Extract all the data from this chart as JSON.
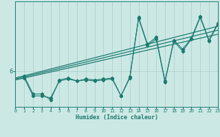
{
  "title": "",
  "xlabel": "Humidex (Indice chaleur)",
  "xlim": [
    0,
    23
  ],
  "ylim": [
    4.2,
    9.5
  ],
  "ytick_val": 6,
  "ytick_label": "6",
  "bg_color": "#cce8e5",
  "line_color": "#1a7a6e",
  "grid_color": "#a8ccc8",
  "series1_x": [
    1,
    2,
    3,
    4,
    5,
    6,
    7,
    8,
    9,
    10,
    11,
    12,
    13,
    14,
    15,
    16,
    17,
    18,
    19,
    20,
    21,
    22,
    23
  ],
  "series1_y": [
    5.65,
    4.75,
    4.75,
    4.65,
    5.5,
    5.6,
    5.5,
    5.55,
    5.5,
    5.55,
    5.6,
    4.75,
    5.65,
    8.65,
    7.3,
    7.6,
    5.45,
    7.5,
    7.0,
    7.6,
    8.7,
    7.5,
    8.35
  ],
  "series2_x": [
    1,
    2,
    3,
    4,
    5,
    6,
    7,
    8,
    9,
    10,
    11,
    12,
    13,
    14,
    15,
    16,
    17,
    18,
    19,
    20,
    21,
    22,
    23
  ],
  "series2_y": [
    5.75,
    4.85,
    4.85,
    4.55,
    5.55,
    5.65,
    5.5,
    5.6,
    5.55,
    5.6,
    5.65,
    4.75,
    5.7,
    8.7,
    7.35,
    7.7,
    5.5,
    7.55,
    7.1,
    7.65,
    8.75,
    7.55,
    8.4
  ],
  "trend1_x": [
    0,
    23
  ],
  "trend1_y": [
    5.55,
    7.85
  ],
  "trend2_x": [
    0,
    23
  ],
  "trend2_y": [
    5.6,
    8.05
  ],
  "trend3_x": [
    0,
    23
  ],
  "trend3_y": [
    5.65,
    8.25
  ]
}
